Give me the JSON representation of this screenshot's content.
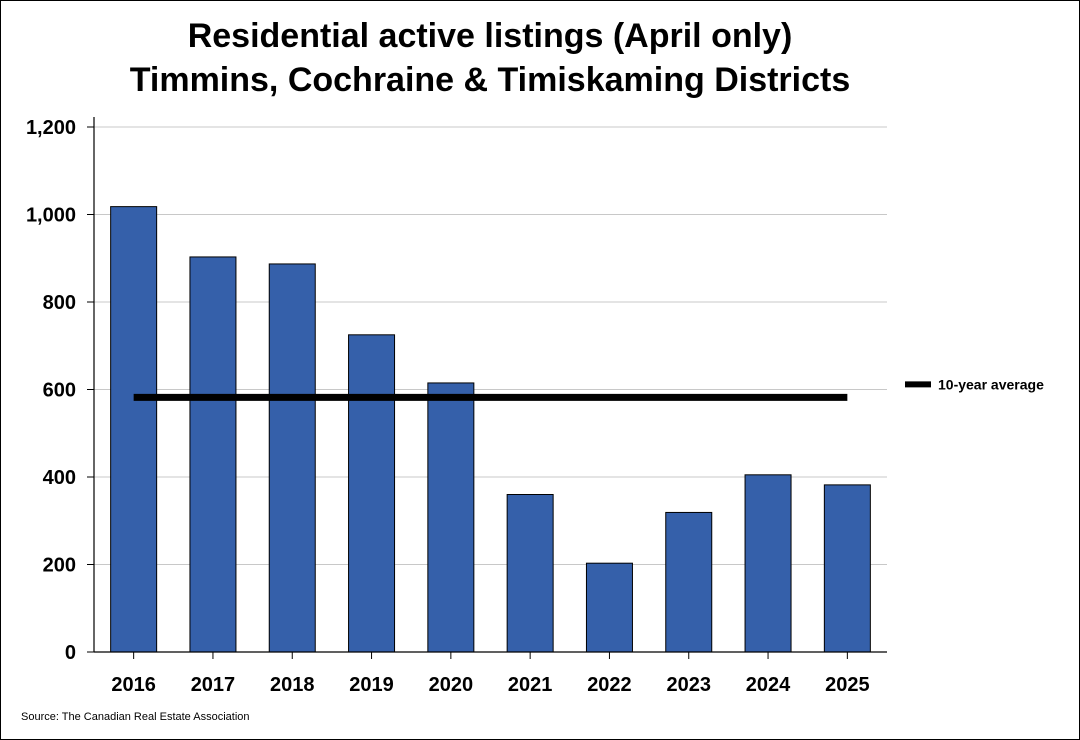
{
  "chart_data": {
    "type": "bar",
    "title": [
      "Residential active listings (April only)",
      "Timmins, Cochraine & Timiskaming Districts"
    ],
    "categories": [
      "2016",
      "2017",
      "2018",
      "2019",
      "2020",
      "2021",
      "2022",
      "2023",
      "2024",
      "2025"
    ],
    "series": [
      {
        "values": [
          1018,
          903,
          887,
          725,
          615,
          360,
          203,
          319,
          405,
          382
        ],
        "color": "#3560AA"
      }
    ],
    "reference_line": {
      "name": "10-year average",
      "value": 582,
      "color": "#000000"
    },
    "ylim": [
      0,
      1200
    ],
    "yticks": [
      0,
      200,
      400,
      600,
      800,
      1000,
      1200
    ],
    "ytick_labels": [
      "0",
      "200",
      "400",
      "600",
      "800",
      "1,000",
      "1,200"
    ],
    "grid": true,
    "legend_position": "right",
    "xlabel": "",
    "ylabel": ""
  },
  "source_text": "Source: The Canadian Real Estate Association"
}
